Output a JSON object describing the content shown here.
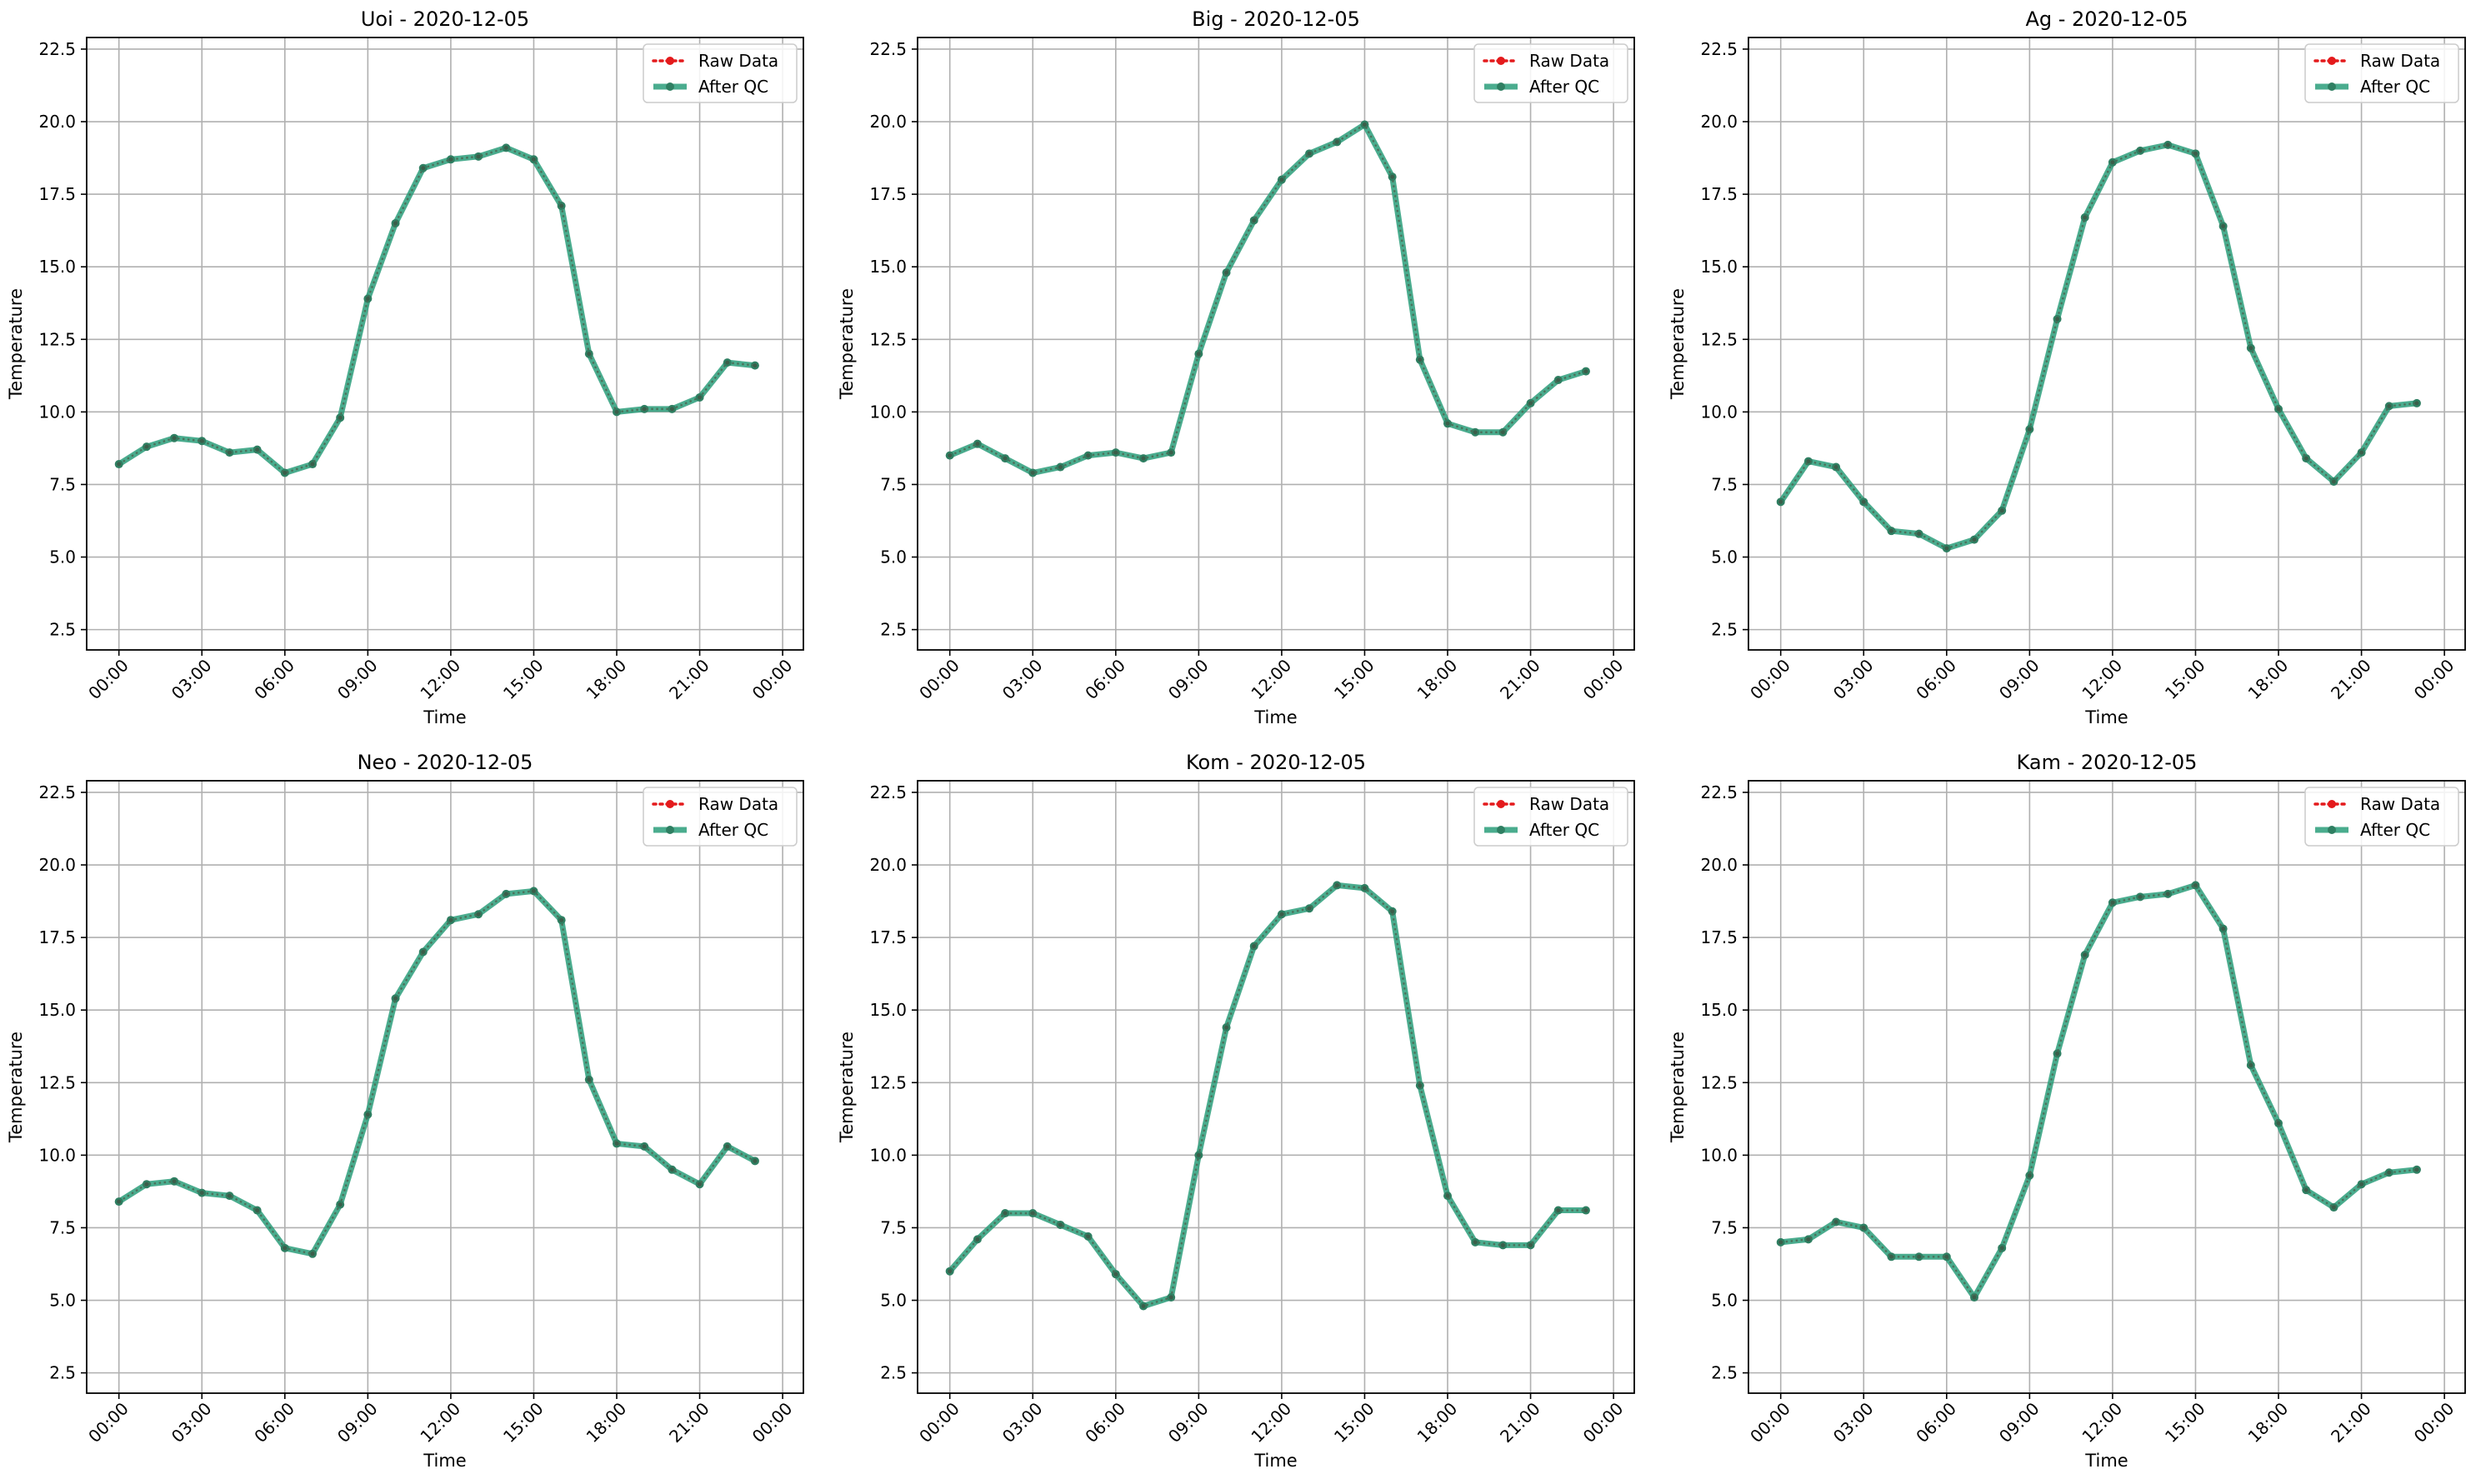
{
  "chart_data": [
    {
      "type": "line",
      "title": "Uoi - 2020-12-05",
      "xlabel": "Time",
      "ylabel": "Temperature",
      "ylim": [
        1.8,
        22.9
      ],
      "xlim": [
        "2020-12-04 22:50",
        "2020-12-06 00:45"
      ],
      "x_ticks": [
        "00:00",
        "03:00",
        "06:00",
        "09:00",
        "12:00",
        "15:00",
        "18:00",
        "21:00",
        "00:00"
      ],
      "y_ticks": [
        "2.5",
        "5.0",
        "7.5",
        "10.0",
        "12.5",
        "15.0",
        "17.5",
        "20.0",
        "22.5"
      ],
      "grid": true,
      "legend_position": "upper-right",
      "x": [
        "00:00",
        "01:00",
        "02:00",
        "03:00",
        "04:00",
        "05:00",
        "06:00",
        "07:00",
        "08:00",
        "09:00",
        "10:00",
        "11:00",
        "12:00",
        "13:00",
        "14:00",
        "15:00",
        "16:00",
        "17:00",
        "18:00",
        "19:00",
        "20:00",
        "21:00",
        "22:00",
        "23:00"
      ],
      "series": [
        {
          "name": "Raw Data",
          "color": "#e41a1c",
          "style": "dotted",
          "values": [
            8.2,
            8.8,
            9.1,
            9.0,
            8.6,
            8.7,
            7.9,
            8.2,
            9.8,
            13.9,
            16.5,
            18.4,
            18.7,
            18.8,
            19.1,
            18.7,
            17.1,
            12.0,
            10.0,
            10.1,
            10.1,
            10.5,
            11.7,
            11.6
          ]
        },
        {
          "name": "After QC",
          "color": "#2a9d7a",
          "style": "solid",
          "values": [
            8.2,
            8.8,
            9.1,
            9.0,
            8.6,
            8.7,
            7.9,
            8.2,
            9.8,
            13.9,
            16.5,
            18.4,
            18.7,
            18.8,
            19.1,
            18.7,
            17.1,
            12.0,
            10.0,
            10.1,
            10.1,
            10.5,
            11.7,
            11.6
          ]
        }
      ]
    },
    {
      "type": "line",
      "title": "Big - 2020-12-05",
      "xlabel": "Time",
      "ylabel": "Temperature",
      "ylim": [
        1.8,
        22.9
      ],
      "xlim": [
        "2020-12-04 22:50",
        "2020-12-06 00:45"
      ],
      "x_ticks": [
        "00:00",
        "03:00",
        "06:00",
        "09:00",
        "12:00",
        "15:00",
        "18:00",
        "21:00",
        "00:00"
      ],
      "y_ticks": [
        "2.5",
        "5.0",
        "7.5",
        "10.0",
        "12.5",
        "15.0",
        "17.5",
        "20.0",
        "22.5"
      ],
      "grid": true,
      "legend_position": "upper-right",
      "x": [
        "00:00",
        "01:00",
        "02:00",
        "03:00",
        "04:00",
        "05:00",
        "06:00",
        "07:00",
        "08:00",
        "09:00",
        "10:00",
        "11:00",
        "12:00",
        "13:00",
        "14:00",
        "15:00",
        "16:00",
        "17:00",
        "18:00",
        "19:00",
        "20:00",
        "21:00",
        "22:00",
        "23:00"
      ],
      "series": [
        {
          "name": "Raw Data",
          "color": "#e41a1c",
          "style": "dotted",
          "values": [
            8.5,
            8.9,
            8.4,
            7.9,
            8.1,
            8.5,
            8.6,
            8.4,
            8.6,
            12.0,
            14.8,
            16.6,
            18.0,
            18.9,
            19.3,
            19.9,
            18.1,
            11.8,
            9.6,
            9.3,
            9.3,
            10.3,
            11.1,
            11.4
          ]
        },
        {
          "name": "After QC",
          "color": "#2a9d7a",
          "style": "solid",
          "values": [
            8.5,
            8.9,
            8.4,
            7.9,
            8.1,
            8.5,
            8.6,
            8.4,
            8.6,
            12.0,
            14.8,
            16.6,
            18.0,
            18.9,
            19.3,
            19.9,
            18.1,
            11.8,
            9.6,
            9.3,
            9.3,
            10.3,
            11.1,
            11.4
          ]
        }
      ]
    },
    {
      "type": "line",
      "title": "Ag - 2020-12-05",
      "xlabel": "Time",
      "ylabel": "Temperature",
      "ylim": [
        1.8,
        22.9
      ],
      "xlim": [
        "2020-12-04 22:50",
        "2020-12-06 00:45"
      ],
      "x_ticks": [
        "00:00",
        "03:00",
        "06:00",
        "09:00",
        "12:00",
        "15:00",
        "18:00",
        "21:00",
        "00:00"
      ],
      "y_ticks": [
        "2.5",
        "5.0",
        "7.5",
        "10.0",
        "12.5",
        "15.0",
        "17.5",
        "20.0",
        "22.5"
      ],
      "grid": true,
      "legend_position": "upper-right",
      "x": [
        "00:00",
        "01:00",
        "02:00",
        "03:00",
        "04:00",
        "05:00",
        "06:00",
        "07:00",
        "08:00",
        "09:00",
        "10:00",
        "11:00",
        "12:00",
        "13:00",
        "14:00",
        "15:00",
        "16:00",
        "17:00",
        "18:00",
        "19:00",
        "20:00",
        "21:00",
        "22:00",
        "23:00"
      ],
      "series": [
        {
          "name": "Raw Data",
          "color": "#e41a1c",
          "style": "dotted",
          "values": [
            6.9,
            8.3,
            8.1,
            6.9,
            5.9,
            5.8,
            5.3,
            5.6,
            6.6,
            9.4,
            13.2,
            16.7,
            18.6,
            19.0,
            19.2,
            18.9,
            16.4,
            12.2,
            10.1,
            8.4,
            7.6,
            8.6,
            10.2,
            10.3
          ]
        },
        {
          "name": "After QC",
          "color": "#2a9d7a",
          "style": "solid",
          "values": [
            6.9,
            8.3,
            8.1,
            6.9,
            5.9,
            5.8,
            5.3,
            5.6,
            6.6,
            9.4,
            13.2,
            16.7,
            18.6,
            19.0,
            19.2,
            18.9,
            16.4,
            12.2,
            10.1,
            8.4,
            7.6,
            8.6,
            10.2,
            10.3
          ]
        }
      ]
    },
    {
      "type": "line",
      "title": "Neo - 2020-12-05",
      "xlabel": "Time",
      "ylabel": "Temperature",
      "ylim": [
        1.8,
        22.9
      ],
      "xlim": [
        "2020-12-04 22:50",
        "2020-12-06 00:45"
      ],
      "x_ticks": [
        "00:00",
        "03:00",
        "06:00",
        "09:00",
        "12:00",
        "15:00",
        "18:00",
        "21:00",
        "00:00"
      ],
      "y_ticks": [
        "2.5",
        "5.0",
        "7.5",
        "10.0",
        "12.5",
        "15.0",
        "17.5",
        "20.0",
        "22.5"
      ],
      "grid": true,
      "legend_position": "upper-right",
      "x": [
        "00:00",
        "01:00",
        "02:00",
        "03:00",
        "04:00",
        "05:00",
        "06:00",
        "07:00",
        "08:00",
        "09:00",
        "10:00",
        "11:00",
        "12:00",
        "13:00",
        "14:00",
        "15:00",
        "16:00",
        "17:00",
        "18:00",
        "19:00",
        "20:00",
        "21:00",
        "22:00",
        "23:00"
      ],
      "series": [
        {
          "name": "Raw Data",
          "color": "#e41a1c",
          "style": "dotted",
          "values": [
            8.4,
            9.0,
            9.1,
            8.7,
            8.6,
            8.1,
            6.8,
            6.6,
            8.3,
            11.4,
            15.4,
            17.0,
            18.1,
            18.3,
            19.0,
            19.1,
            18.1,
            12.6,
            10.4,
            10.3,
            9.5,
            9.0,
            10.3,
            9.8
          ]
        },
        {
          "name": "After QC",
          "color": "#2a9d7a",
          "style": "solid",
          "values": [
            8.4,
            9.0,
            9.1,
            8.7,
            8.6,
            8.1,
            6.8,
            6.6,
            8.3,
            11.4,
            15.4,
            17.0,
            18.1,
            18.3,
            19.0,
            19.1,
            18.1,
            12.6,
            10.4,
            10.3,
            9.5,
            9.0,
            10.3,
            9.8
          ]
        }
      ]
    },
    {
      "type": "line",
      "title": "Kom - 2020-12-05",
      "xlabel": "Time",
      "ylabel": "Temperature",
      "ylim": [
        1.8,
        22.9
      ],
      "xlim": [
        "2020-12-04 22:50",
        "2020-12-06 00:45"
      ],
      "x_ticks": [
        "00:00",
        "03:00",
        "06:00",
        "09:00",
        "12:00",
        "15:00",
        "18:00",
        "21:00",
        "00:00"
      ],
      "y_ticks": [
        "2.5",
        "5.0",
        "7.5",
        "10.0",
        "12.5",
        "15.0",
        "17.5",
        "20.0",
        "22.5"
      ],
      "grid": true,
      "legend_position": "upper-right",
      "x": [
        "00:00",
        "01:00",
        "02:00",
        "03:00",
        "04:00",
        "05:00",
        "06:00",
        "07:00",
        "08:00",
        "09:00",
        "10:00",
        "11:00",
        "12:00",
        "13:00",
        "14:00",
        "15:00",
        "16:00",
        "17:00",
        "18:00",
        "19:00",
        "20:00",
        "21:00",
        "22:00",
        "23:00"
      ],
      "series": [
        {
          "name": "Raw Data",
          "color": "#e41a1c",
          "style": "dotted",
          "values": [
            6.0,
            7.1,
            8.0,
            8.0,
            7.6,
            7.2,
            5.9,
            4.8,
            5.1,
            10.0,
            14.4,
            17.2,
            18.3,
            18.5,
            19.3,
            19.2,
            18.4,
            12.4,
            8.6,
            7.0,
            6.9,
            6.9,
            8.1,
            8.1
          ]
        },
        {
          "name": "After QC",
          "color": "#2a9d7a",
          "style": "solid",
          "values": [
            6.0,
            7.1,
            8.0,
            8.0,
            7.6,
            7.2,
            5.9,
            4.8,
            5.1,
            10.0,
            14.4,
            17.2,
            18.3,
            18.5,
            19.3,
            19.2,
            18.4,
            12.4,
            8.6,
            7.0,
            6.9,
            6.9,
            8.1,
            8.1
          ]
        }
      ]
    },
    {
      "type": "line",
      "title": "Kam - 2020-12-05",
      "xlabel": "Time",
      "ylabel": "Temperature",
      "ylim": [
        1.8,
        22.9
      ],
      "xlim": [
        "2020-12-04 22:50",
        "2020-12-06 00:45"
      ],
      "x_ticks": [
        "00:00",
        "03:00",
        "06:00",
        "09:00",
        "12:00",
        "15:00",
        "18:00",
        "21:00",
        "00:00"
      ],
      "y_ticks": [
        "2.5",
        "5.0",
        "7.5",
        "10.0",
        "12.5",
        "15.0",
        "17.5",
        "20.0",
        "22.5"
      ],
      "grid": true,
      "legend_position": "upper-right",
      "x": [
        "00:00",
        "01:00",
        "02:00",
        "03:00",
        "04:00",
        "05:00",
        "06:00",
        "07:00",
        "08:00",
        "09:00",
        "10:00",
        "11:00",
        "12:00",
        "13:00",
        "14:00",
        "15:00",
        "16:00",
        "17:00",
        "18:00",
        "19:00",
        "20:00",
        "21:00",
        "22:00",
        "23:00"
      ],
      "series": [
        {
          "name": "Raw Data",
          "color": "#e41a1c",
          "style": "dotted",
          "values": [
            7.0,
            7.1,
            7.7,
            7.5,
            6.5,
            6.5,
            6.5,
            5.1,
            6.8,
            9.3,
            13.5,
            16.9,
            18.7,
            18.9,
            19.0,
            19.3,
            17.8,
            13.1,
            11.1,
            8.8,
            8.2,
            9.0,
            9.4,
            9.5
          ]
        },
        {
          "name": "After QC",
          "color": "#2a9d7a",
          "style": "solid",
          "values": [
            7.0,
            7.1,
            7.7,
            7.5,
            6.5,
            6.5,
            6.5,
            5.1,
            6.8,
            9.3,
            13.5,
            16.9,
            18.7,
            18.9,
            19.0,
            19.3,
            17.8,
            13.1,
            11.1,
            8.8,
            8.2,
            9.0,
            9.4,
            9.5
          ]
        }
      ]
    }
  ]
}
